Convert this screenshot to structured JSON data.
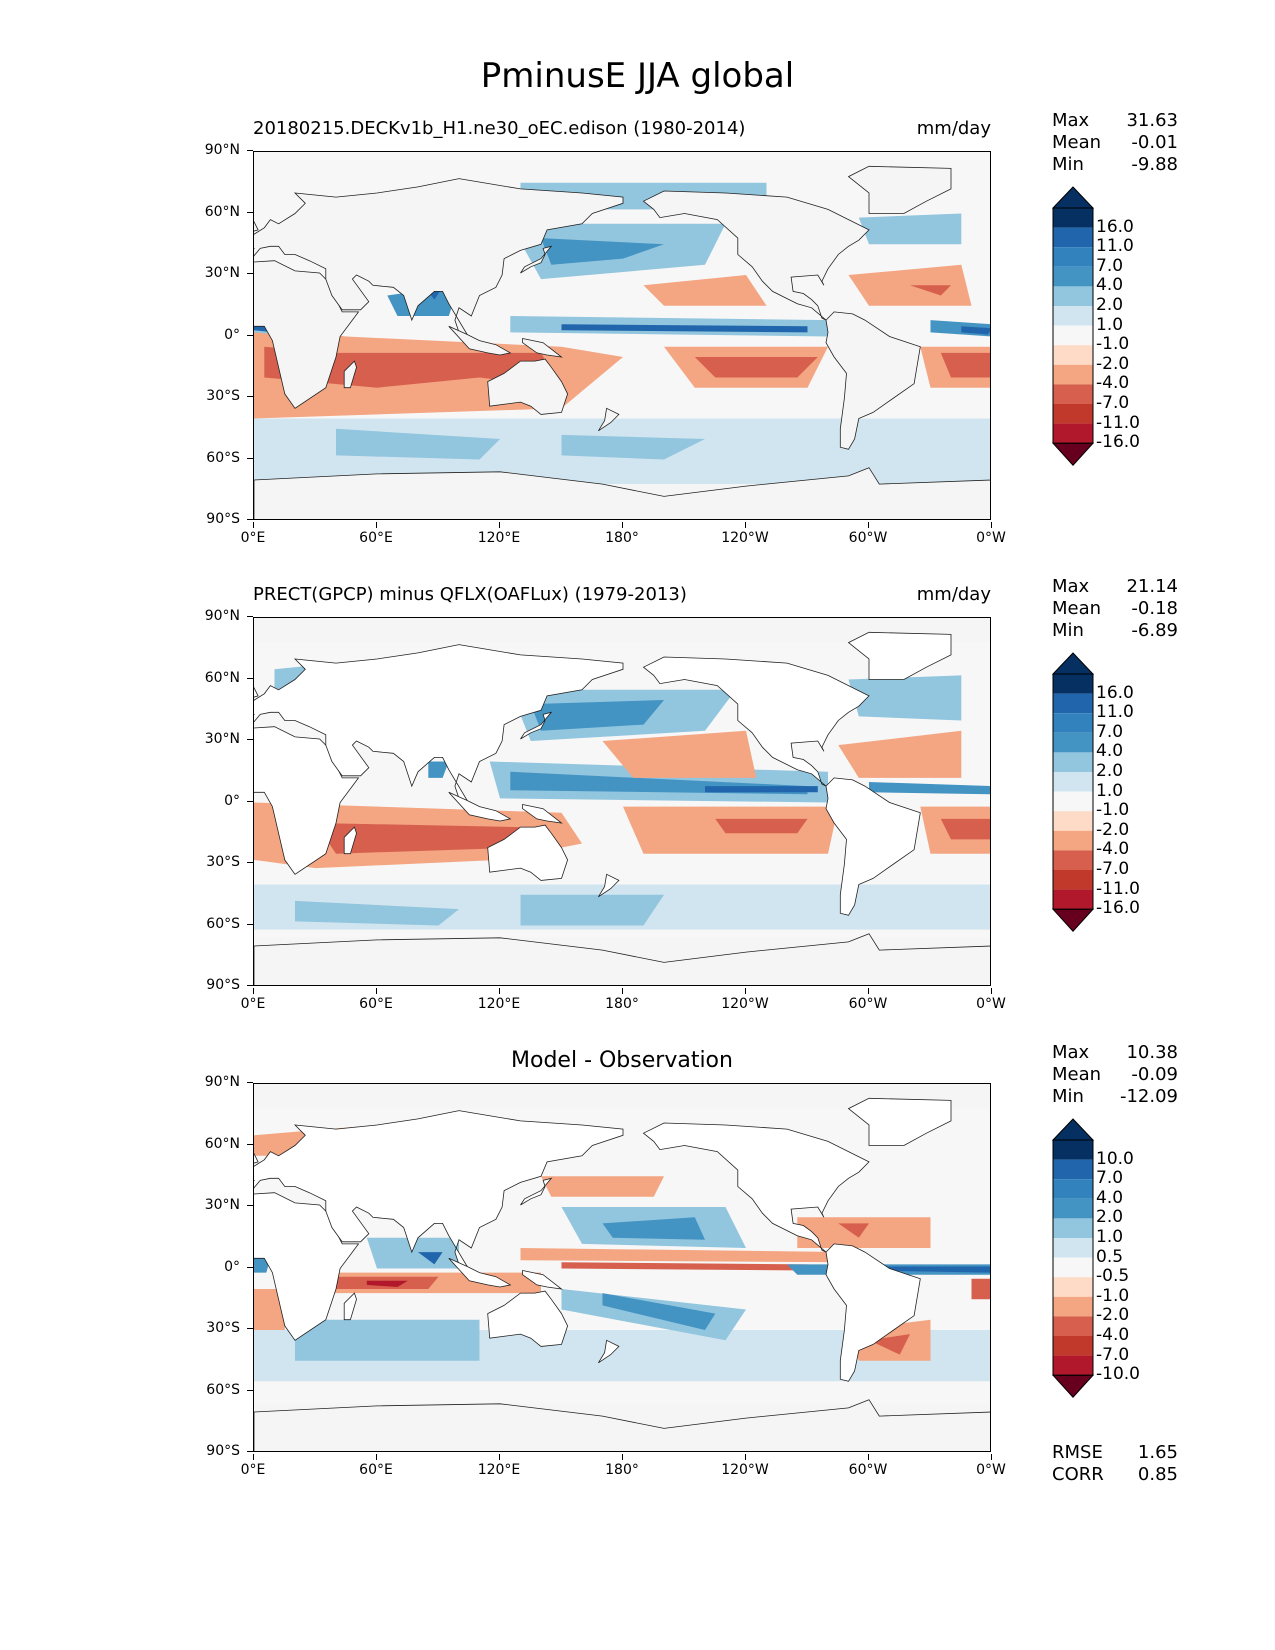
{
  "figure_title": "PminusE JJA global",
  "x_ticks": [
    "0°E",
    "60°E",
    "120°E",
    "180°",
    "120°W",
    "60°W",
    "0°W"
  ],
  "y_ticks": [
    "90°N",
    "60°N",
    "30°N",
    "0°",
    "30°S",
    "60°S",
    "90°S"
  ],
  "colors": {
    "blue_darkest": "#053061",
    "blue_dark": "#2166ac",
    "blue_mid": "#4393c3",
    "blue_light": "#92c5de",
    "blue_pale": "#d1e5f0",
    "near_white": "#f7f7f7",
    "red_pale": "#fddbc7",
    "red_light": "#f4a582",
    "red_mid": "#d6604d",
    "red_dark": "#b2182b",
    "red_darkest": "#67001f",
    "land": "#ffffff",
    "background": "#f5f5f5"
  },
  "panels": [
    {
      "title_left": "20180215.DECKv1b_H1.ne30_oEC.edison (1980-2014)",
      "title_center": "",
      "units": "mm/day",
      "stats": {
        "max_label": "Max",
        "max": "31.63",
        "mean_label": "Mean",
        "mean": "-0.01",
        "min_label": "Min",
        "min": "-9.88"
      },
      "colorbar_levels": [
        "16.0",
        "11.0",
        "7.0",
        "4.0",
        "2.0",
        "1.0",
        "-1.0",
        "-2.0",
        "-4.0",
        "-7.0",
        "-11.0",
        "-16.0"
      ]
    },
    {
      "title_left": "PRECT(GPCP) minus QFLX(OAFLux) (1979-2013)",
      "title_center": "",
      "units": "mm/day",
      "stats": {
        "max_label": "Max",
        "max": "21.14",
        "mean_label": "Mean",
        "mean": "-0.18",
        "min_label": "Min",
        "min": "-6.89"
      },
      "colorbar_levels": [
        "16.0",
        "11.0",
        "7.0",
        "4.0",
        "2.0",
        "1.0",
        "-1.0",
        "-2.0",
        "-4.0",
        "-7.0",
        "-11.0",
        "-16.0"
      ]
    },
    {
      "title_left": "",
      "title_center": "Model - Observation",
      "units": "",
      "stats": {
        "max_label": "Max",
        "max": "10.38",
        "mean_label": "Mean",
        "mean": "-0.09",
        "min_label": "Min",
        "min": "-12.09"
      },
      "colorbar_levels": [
        "10.0",
        "7.0",
        "4.0",
        "2.0",
        "1.0",
        "0.5",
        "-0.5",
        "-1.0",
        "-2.0",
        "-4.0",
        "-7.0",
        "-10.0"
      ],
      "extra_stats": {
        "rmse_label": "RMSE",
        "rmse": "1.65",
        "corr_label": "CORR",
        "corr": "0.85"
      }
    }
  ]
}
